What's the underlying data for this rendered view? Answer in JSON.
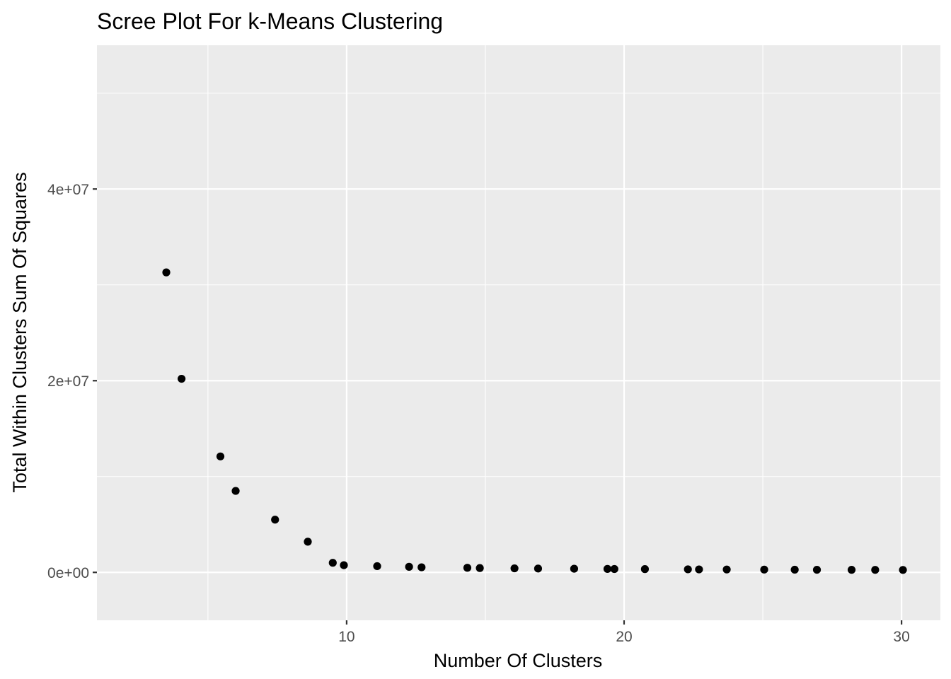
{
  "chart_data": {
    "type": "scatter",
    "title": "Scree Plot For k-Means Clustering",
    "xlabel": "Number Of Clusters",
    "ylabel": "Total Within Clusters Sum Of Squares",
    "xlim": [
      1.0,
      31.4
    ],
    "ylim": [
      -5000000,
      55000000
    ],
    "x_ticks": [
      {
        "value": 10,
        "label": "10"
      },
      {
        "value": 20,
        "label": "20"
      },
      {
        "value": 30,
        "label": "30"
      }
    ],
    "y_ticks": [
      {
        "value": 0,
        "label": "0e+00"
      },
      {
        "value": 20000000,
        "label": "2e+07"
      },
      {
        "value": 40000000,
        "label": "4e+07"
      }
    ],
    "grid": true,
    "panel_background": "#ebebeb",
    "grid_color": "#ffffff",
    "point_color": "#000000",
    "points": [
      {
        "x": 3.5,
        "y": 31300000
      },
      {
        "x": 4.05,
        "y": 20200000
      },
      {
        "x": 5.45,
        "y": 12100000
      },
      {
        "x": 6.0,
        "y": 8500000
      },
      {
        "x": 7.42,
        "y": 5500000
      },
      {
        "x": 8.6,
        "y": 3200000
      },
      {
        "x": 9.5,
        "y": 1000000
      },
      {
        "x": 9.9,
        "y": 750000
      },
      {
        "x": 11.1,
        "y": 650000
      },
      {
        "x": 12.25,
        "y": 580000
      },
      {
        "x": 12.7,
        "y": 530000
      },
      {
        "x": 14.35,
        "y": 480000
      },
      {
        "x": 14.8,
        "y": 450000
      },
      {
        "x": 16.05,
        "y": 420000
      },
      {
        "x": 16.9,
        "y": 400000
      },
      {
        "x": 18.2,
        "y": 380000
      },
      {
        "x": 19.4,
        "y": 360000
      },
      {
        "x": 19.65,
        "y": 350000
      },
      {
        "x": 20.75,
        "y": 340000
      },
      {
        "x": 22.3,
        "y": 320000
      },
      {
        "x": 22.7,
        "y": 310000
      },
      {
        "x": 23.7,
        "y": 300000
      },
      {
        "x": 25.05,
        "y": 290000
      },
      {
        "x": 26.15,
        "y": 280000
      },
      {
        "x": 26.95,
        "y": 270000
      },
      {
        "x": 28.2,
        "y": 265000
      },
      {
        "x": 29.05,
        "y": 260000
      },
      {
        "x": 30.05,
        "y": 255000
      }
    ]
  }
}
